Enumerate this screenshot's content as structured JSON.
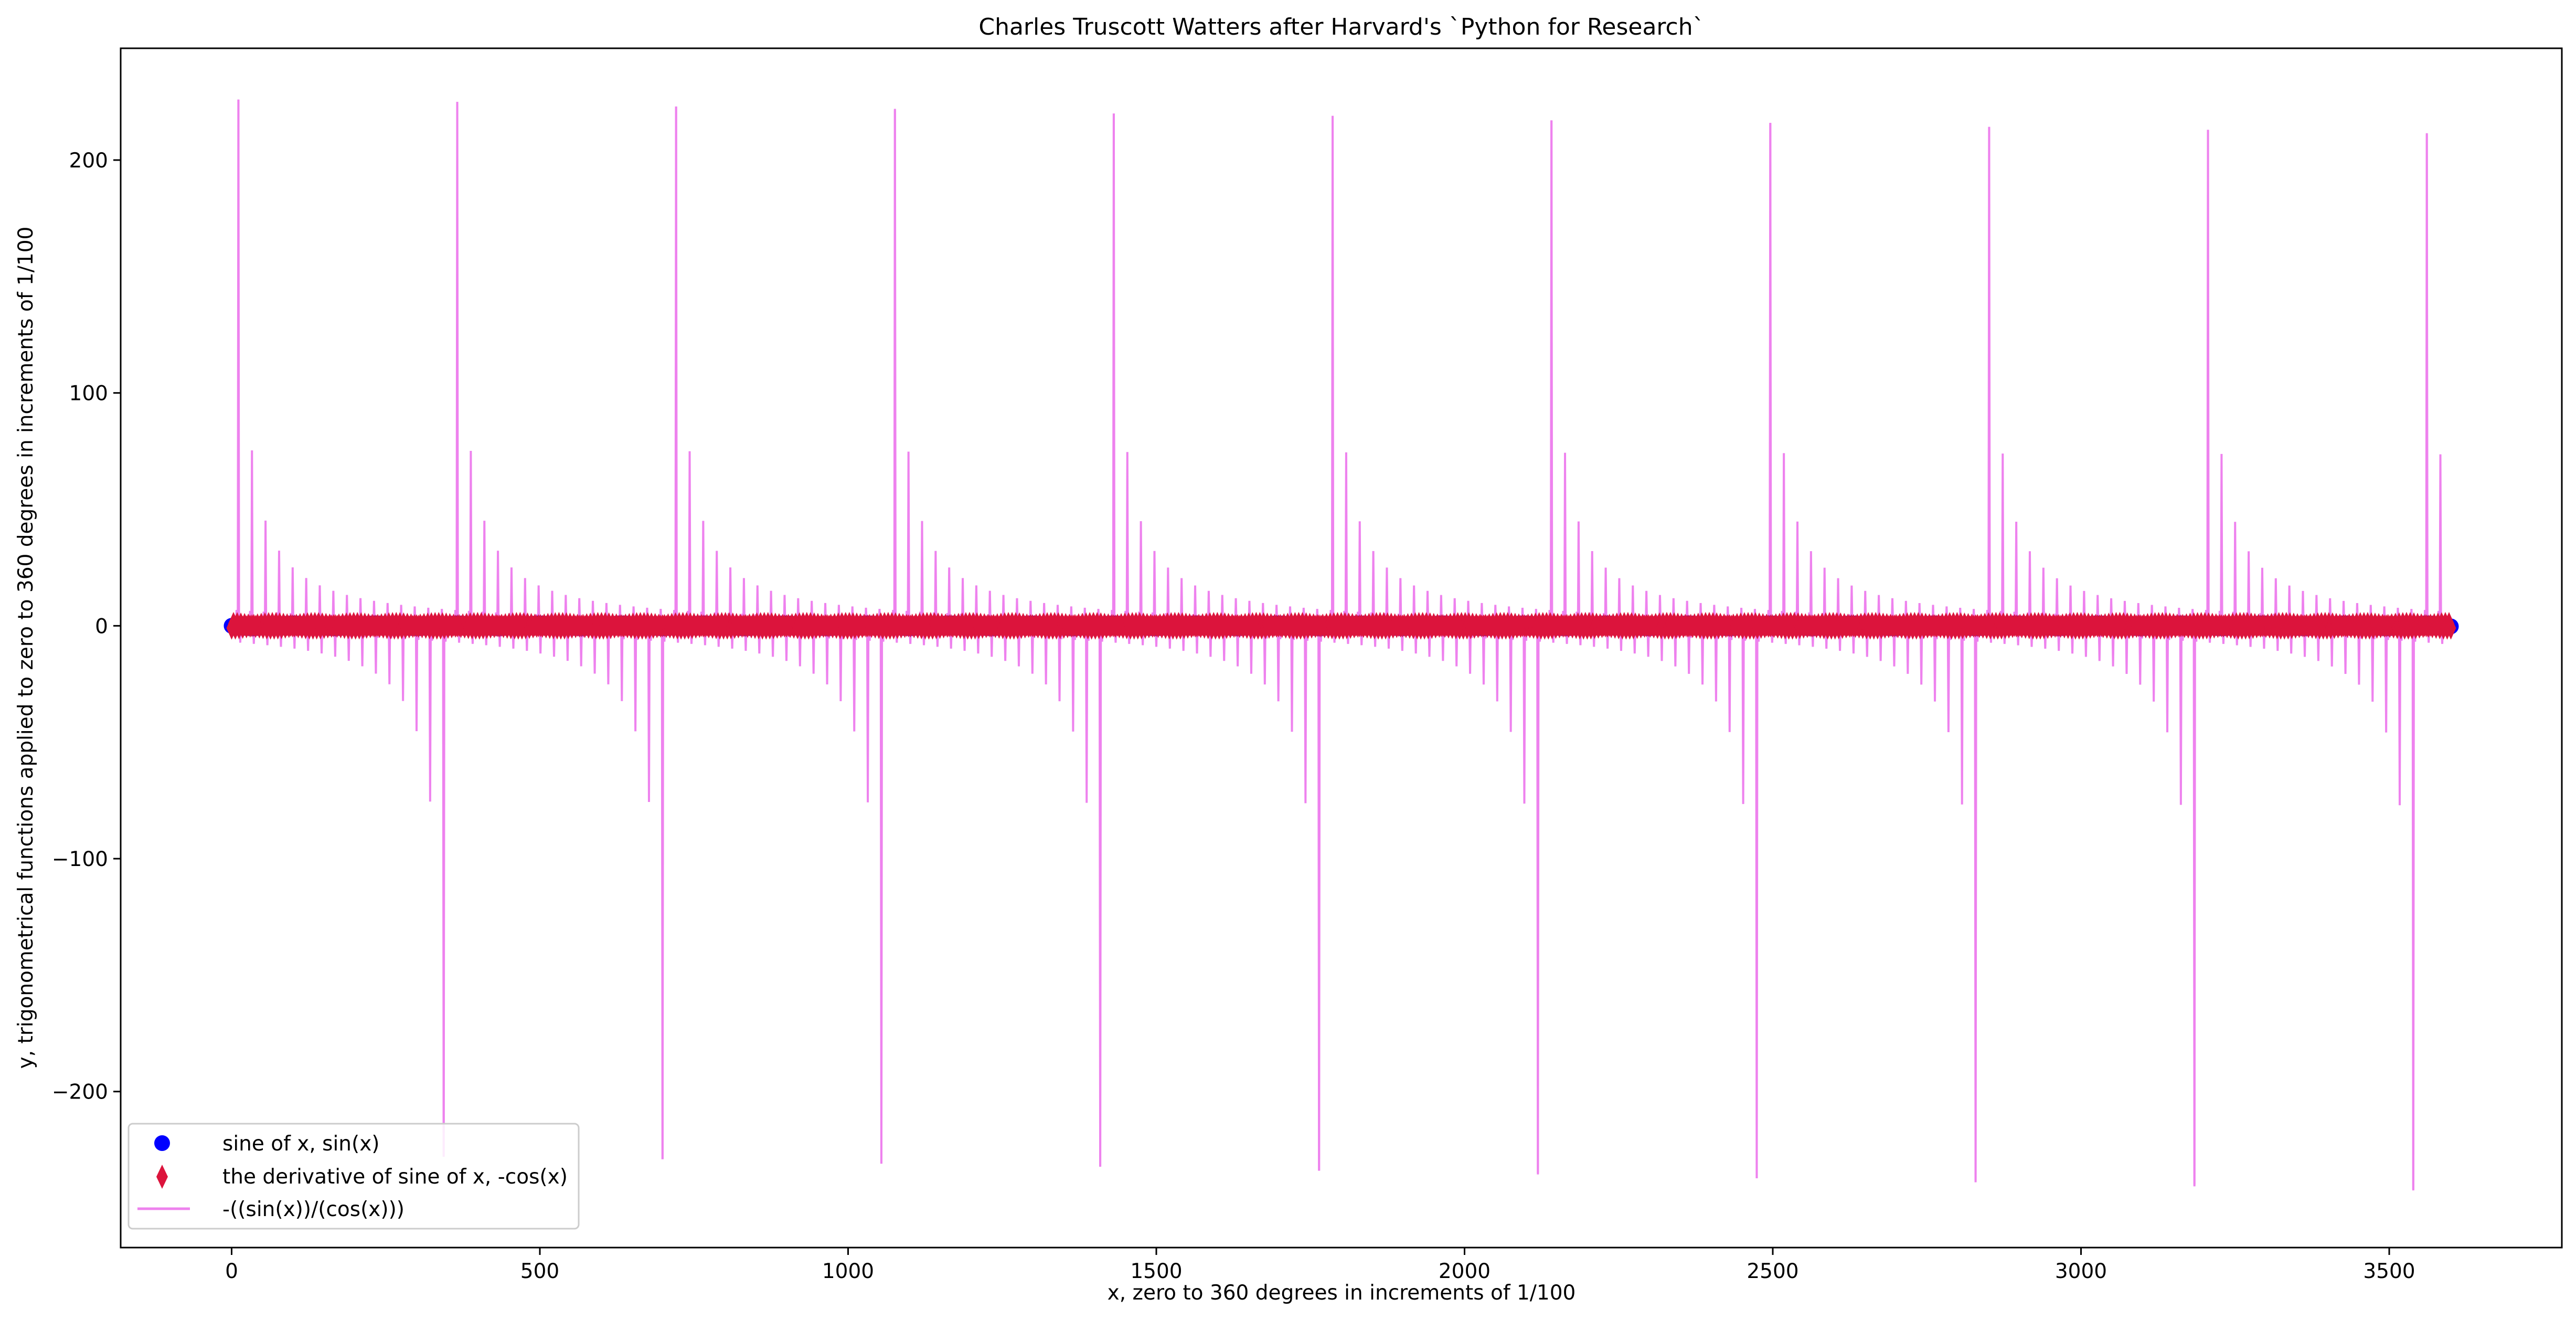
{
  "chart_data": {
    "type": "line",
    "title": "Charles Truscott Watters after Harvard's `Python for Research`",
    "xlabel": "x, zero to 360 degrees in increments of 1/100",
    "ylabel": "y, trigonometrical functions applied to zero to 360 degrees in increments of 1/100",
    "xlim": [
      -180,
      3780
    ],
    "ylim": [
      -267,
      248
    ],
    "xticks": [
      0,
      500,
      1000,
      1500,
      2000,
      2500,
      3000,
      3500
    ],
    "yticks": [
      -200,
      -100,
      0,
      100,
      200
    ],
    "legend_position": "lower left",
    "series": [
      {
        "name": "sine of x, sin(x)",
        "marker": "circle",
        "color": "#0000ff",
        "x_range": [
          0,
          3600
        ],
        "values": "sin(x) for x in 0..3600 step 1"
      },
      {
        "name": "the derivative of sine of x, -cos(x)",
        "marker": "thin_diamond",
        "color": "#dc143c",
        "x_range": [
          0,
          3600
        ],
        "values": "-cos(x) for x in 0..3600 step 1"
      },
      {
        "name": "-((sin(x))/(cos(x)))",
        "marker": "line",
        "color": "#ee82ee",
        "x_range": [
          0,
          3600
        ],
        "values": "-tan(x) for x in 0..3600 step 1"
      }
    ],
    "peaks": [
      {
        "x": 11,
        "y": 226
      },
      {
        "x": 366,
        "y": 225
      },
      {
        "x": 721,
        "y": 223
      },
      {
        "x": 1076,
        "y": 222
      },
      {
        "x": 1431,
        "y": 220
      },
      {
        "x": 1786,
        "y": 219
      },
      {
        "x": 2141,
        "y": 217
      },
      {
        "x": 2496,
        "y": 216
      },
      {
        "x": 2851,
        "y": 214
      },
      {
        "x": 3206,
        "y": 213
      },
      {
        "x": 3561,
        "y": 211
      }
    ],
    "troughs": [
      {
        "x": 344,
        "y": -228
      },
      {
        "x": 699,
        "y": -229
      },
      {
        "x": 1054,
        "y": -231
      },
      {
        "x": 1409,
        "y": -232
      },
      {
        "x": 1764,
        "y": -234
      },
      {
        "x": 2119,
        "y": -235
      },
      {
        "x": 2474,
        "y": -237
      },
      {
        "x": 2829,
        "y": -238
      },
      {
        "x": 3184,
        "y": -240
      },
      {
        "x": 3539,
        "y": -242
      }
    ]
  }
}
